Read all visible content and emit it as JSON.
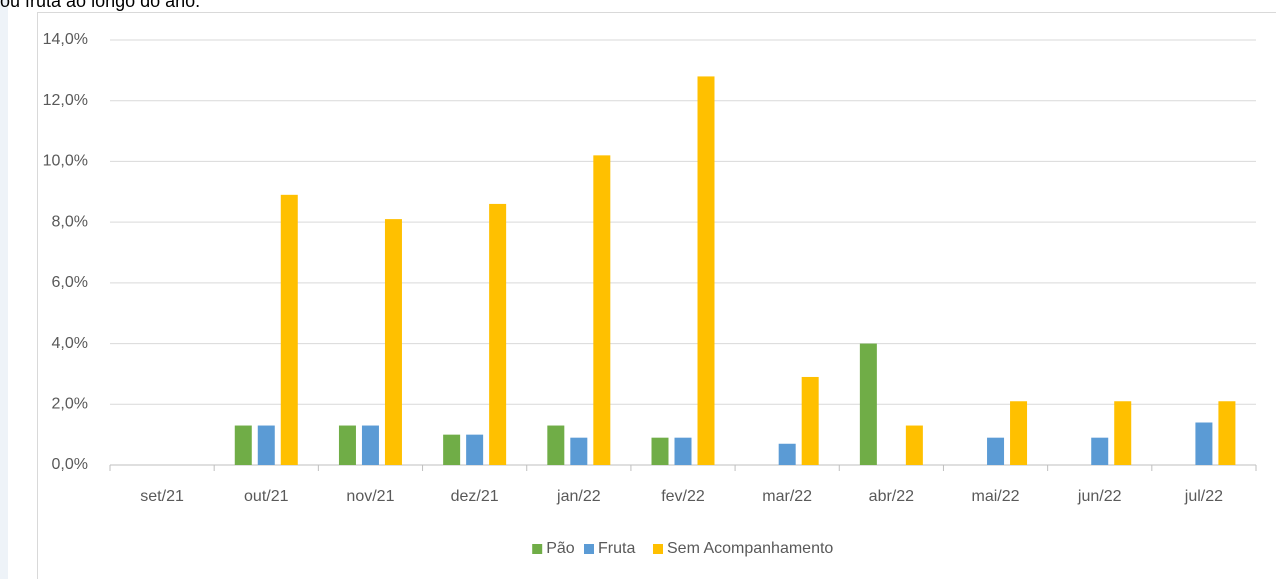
{
  "caption": "ou fruta ao longo do ano.",
  "chart_data": {
    "type": "bar",
    "categories": [
      "set/21",
      "out/21",
      "nov/21",
      "dez/21",
      "jan/22",
      "fev/22",
      "mar/22",
      "abr/22",
      "mai/22",
      "jun/22",
      "jul/22"
    ],
    "series": [
      {
        "name": "Pão",
        "color": "#70ad47",
        "values": [
          0,
          1.3,
          1.3,
          1.0,
          1.3,
          0.9,
          0,
          4.0,
          0,
          0,
          0
        ]
      },
      {
        "name": "Fruta",
        "color": "#5b9bd5",
        "values": [
          0,
          1.3,
          1.3,
          1.0,
          0.9,
          0.9,
          0.7,
          0,
          0.9,
          0.9,
          1.4
        ]
      },
      {
        "name": "Sem Acompanhamento",
        "color": "#ffc000",
        "values": [
          0,
          8.9,
          8.1,
          8.6,
          10.2,
          12.8,
          2.9,
          1.3,
          2.1,
          2.1,
          2.1
        ]
      }
    ],
    "ylim": [
      0,
      14
    ],
    "yticks": [
      {
        "value": 0,
        "label": "0,0%"
      },
      {
        "value": 2,
        "label": "2,0%"
      },
      {
        "value": 4,
        "label": "4,0%"
      },
      {
        "value": 6,
        "label": "6,0%"
      },
      {
        "value": 8,
        "label": "8,0%"
      },
      {
        "value": 10,
        "label": "10,0%"
      },
      {
        "value": 12,
        "label": "12,0%"
      },
      {
        "value": 14,
        "label": "14,0%"
      }
    ],
    "grid": true,
    "legend": "bottom"
  }
}
